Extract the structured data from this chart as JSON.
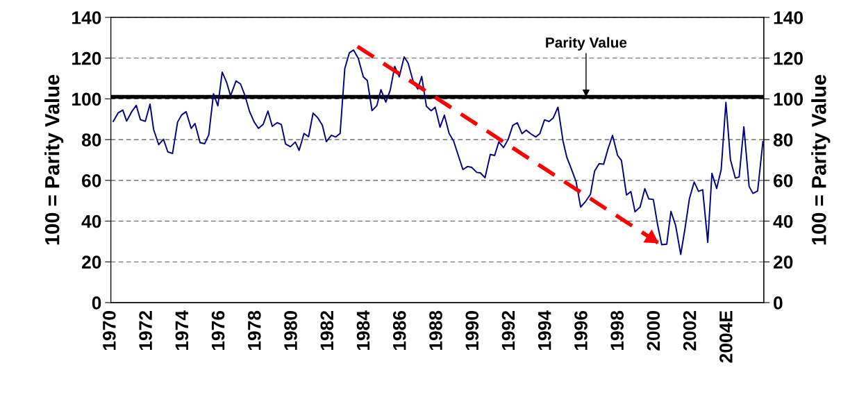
{
  "chart_data": {
    "type": "line",
    "ylabel": "100 = Parity Value",
    "y2label": "100 = Parity Value",
    "xlim": [
      1970,
      2006
    ],
    "xticks": [
      1970,
      1972,
      1974,
      1976,
      1978,
      1980,
      1982,
      1984,
      1986,
      1988,
      1990,
      1992,
      1994,
      1996,
      1998,
      2000,
      2002,
      {
        "value": 2004,
        "label": "2004E"
      }
    ],
    "ylim": [
      0,
      140
    ],
    "yticks": [
      0,
      20,
      40,
      60,
      80,
      100,
      120,
      140
    ],
    "y2lim": [
      0,
      140
    ],
    "y2ticks": [
      0,
      20,
      40,
      60,
      80,
      100,
      120,
      140
    ],
    "grid": "y",
    "legend": false,
    "marker": "none",
    "ref_lines": [
      {
        "axis": "y",
        "value": 101,
        "color": "#000000",
        "line_style": "solid"
      }
    ],
    "annotations": [
      {
        "text": "Parity Value",
        "x": 1996.2,
        "y": 101
      }
    ],
    "series": [
      {
        "color": "#000080",
        "line_style": "solid",
        "x": [
          1970.13,
          1970.4,
          1970.66,
          1970.87,
          1971.15,
          1971.4,
          1971.63,
          1971.9,
          1972.16,
          1972.36,
          1972.64,
          1972.9,
          1973.14,
          1973.4,
          1973.68,
          1973.9,
          1974.15,
          1974.43,
          1974.64,
          1974.92,
          1975.17,
          1975.4,
          1975.66,
          1975.9,
          1976.14,
          1976.39,
          1976.6,
          1976.9,
          1977.15,
          1977.38,
          1977.64,
          1977.9,
          1978.14,
          1978.4,
          1978.66,
          1978.9,
          1979.17,
          1979.4,
          1979.63,
          1979.9,
          1980.17,
          1980.38,
          1980.65,
          1980.9,
          1981.15,
          1981.4,
          1981.66,
          1981.88,
          1982.16,
          1982.4,
          1982.64,
          1982.9,
          1983.15,
          1983.38,
          1983.64,
          1983.92,
          1984.14,
          1984.4,
          1984.66,
          1984.89,
          1985.16,
          1985.4,
          1985.65,
          1985.9,
          1986.17,
          1986.39,
          1986.67,
          1986.92,
          1987.14,
          1987.4,
          1987.66,
          1987.88,
          1988.15,
          1988.39,
          1988.65,
          1988.9,
          1989.15,
          1989.41,
          1989.67,
          1989.89,
          1990.18,
          1990.37,
          1990.63,
          1990.92,
          1991.16,
          1991.39,
          1991.65,
          1991.9,
          1992.16,
          1992.41,
          1992.67,
          1992.9,
          1993.18,
          1993.43,
          1993.65,
          1993.91,
          1994.16,
          1994.39,
          1994.65,
          1994.93,
          1995.14,
          1995.39,
          1995.65,
          1995.9,
          1996.18,
          1996.44,
          1996.67,
          1996.92,
          1997.17,
          1997.41,
          1997.66,
          1997.94,
          1998.15,
          1998.43,
          1998.67,
          1998.9,
          1999.18,
          1999.44,
          1999.66,
          1999.91,
          2000.14,
          2000.37,
          2000.65,
          2000.88,
          2001.14,
          2001.42,
          2001.67,
          2001.9,
          2002.16,
          2002.4,
          2002.63,
          2002.91,
          2003.14,
          2003.4,
          2003.65,
          2003.91,
          2004.16,
          2004.43,
          2004.64,
          2004.9,
          2005.19,
          2005.4,
          2005.66,
          2005.95
        ],
        "values": [
          88.9,
          93.1,
          94.5,
          89.1,
          93.7,
          96.8,
          89.8,
          89.0,
          97.4,
          84.9,
          77.5,
          80.2,
          74.0,
          73.2,
          88.6,
          92.1,
          93.7,
          85.5,
          87.9,
          78.5,
          78.0,
          82.4,
          102.5,
          96.6,
          113.1,
          107.9,
          101.5,
          108.8,
          107.3,
          102.0,
          94.0,
          88.7,
          85.5,
          87.5,
          94.0,
          86.5,
          88.3,
          87.4,
          77.9,
          76.5,
          78.8,
          74.7,
          83.0,
          81.4,
          93.0,
          90.8,
          87.1,
          79.0,
          82.1,
          81.3,
          83.0,
          115.0,
          122.6,
          124.0,
          119.9,
          110.8,
          109.0,
          94.2,
          96.6,
          104.5,
          98.4,
          104.2,
          115.9,
          110.8,
          120.6,
          117.6,
          108.5,
          104.8,
          111.0,
          96.3,
          94.2,
          95.9,
          86.1,
          92.0,
          83.0,
          79.3,
          72.4,
          65.3,
          66.8,
          66.4,
          63.9,
          63.7,
          61.3,
          72.7,
          72.2,
          78.9,
          76.1,
          80.0,
          87.0,
          88.3,
          82.9,
          84.6,
          82.7,
          81.3,
          82.9,
          89.7,
          88.9,
          90.6,
          95.9,
          79.3,
          71.3,
          65.6,
          59.4,
          46.9,
          49.7,
          53.1,
          64.5,
          68.2,
          67.9,
          75.5,
          82.1,
          72.2,
          69.8,
          52.8,
          54.5,
          44.6,
          46.9,
          55.9,
          50.9,
          50.6,
          38.4,
          28.4,
          28.7,
          44.8,
          37.8,
          23.6,
          37.2,
          51.1,
          59.2,
          54.6,
          55.4,
          29.6,
          63.4,
          56.0,
          65.3,
          98.3,
          70.2,
          61.1,
          61.7,
          86.3,
          57.0,
          53.6,
          54.8,
          79.0
        ]
      },
      {
        "type": "line",
        "color": "#ff0000",
        "line_style": "dashed",
        "x": [
          1983.6,
          2000.3
        ],
        "values": [
          125.7,
          28.6
        ]
      }
    ]
  }
}
